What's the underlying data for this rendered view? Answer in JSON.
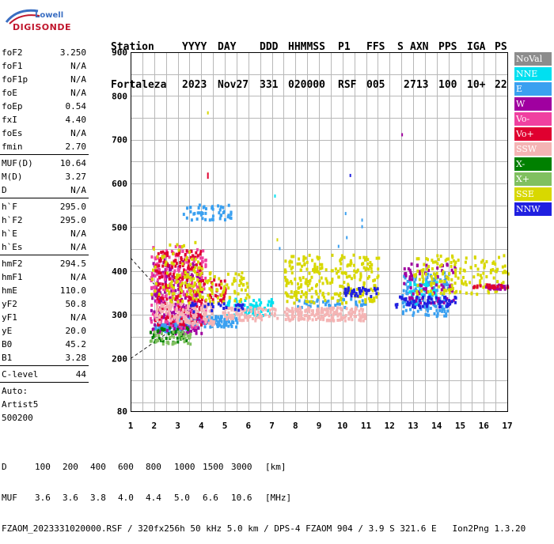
{
  "logo": {
    "line1": "Lowell",
    "line2": "DIGISONDE"
  },
  "header": {
    "line1": [
      "Station",
      "YYYY",
      "DAY",
      "DDD",
      "HHMMSS",
      "P1",
      "FFS",
      "S",
      "AXN",
      "PPS",
      "IGA",
      "PS"
    ],
    "line2": [
      "Fortaleza",
      "2023",
      "Nov27",
      "331",
      "020000",
      "RSF",
      "005",
      "2",
      "713",
      "100",
      "10+",
      "22"
    ]
  },
  "params": {
    "group1": [
      {
        "name": "foF2",
        "value": "3.250"
      },
      {
        "name": "foF1",
        "value": "N/A"
      },
      {
        "name": "foF1p",
        "value": "N/A"
      },
      {
        "name": "foE",
        "value": "N/A"
      },
      {
        "name": "foEp",
        "value": "0.54"
      },
      {
        "name": "fxI",
        "value": "4.40"
      },
      {
        "name": "foEs",
        "value": "N/A"
      },
      {
        "name": "fmin",
        "value": "2.70"
      }
    ],
    "group2": [
      {
        "name": "MUF(D)",
        "value": "10.64"
      },
      {
        "name": "M(D)",
        "value": "3.27"
      },
      {
        "name": "D",
        "value": "N/A"
      }
    ],
    "group3": [
      {
        "name": "h`F",
        "value": "295.0"
      },
      {
        "name": "h`F2",
        "value": "295.0"
      },
      {
        "name": "h`E",
        "value": "N/A"
      },
      {
        "name": "h`Es",
        "value": "N/A"
      }
    ],
    "group4": [
      {
        "name": "hmF2",
        "value": "294.5"
      },
      {
        "name": "hmF1",
        "value": "N/A"
      },
      {
        "name": "hmE",
        "value": "110.0"
      },
      {
        "name": "yF2",
        "value": "50.8"
      },
      {
        "name": "yF1",
        "value": "N/A"
      },
      {
        "name": "yE",
        "value": "20.0"
      },
      {
        "name": "B0",
        "value": "45.2"
      },
      {
        "name": "B1",
        "value": "3.28"
      }
    ],
    "group5": [
      {
        "name": "C-level",
        "value": "44"
      }
    ],
    "auto": [
      "Auto:",
      "Artist5",
      "500200"
    ]
  },
  "legend": [
    {
      "label": "NoVal",
      "color": "#8c8c8c"
    },
    {
      "label": "NNE",
      "color": "#00e0f0"
    },
    {
      "label": "E",
      "color": "#3aa0f0"
    },
    {
      "label": "W",
      "color": "#a000a0"
    },
    {
      "label": "Vo-",
      "color": "#f040a0"
    },
    {
      "label": "Vo+",
      "color": "#e00030"
    },
    {
      "label": "SSW",
      "color": "#f4b4b4"
    },
    {
      "label": "X-",
      "color": "#008000"
    },
    {
      "label": "X+",
      "color": "#80c060"
    },
    {
      "label": "SSE",
      "color": "#d8d800"
    },
    {
      "label": "NNW",
      "color": "#2020e0"
    }
  ],
  "footer": {
    "d_label": "D",
    "d_values": [
      "100",
      "200",
      "400",
      "600",
      "800",
      "1000",
      "1500",
      "3000",
      "[km]"
    ],
    "muf_label": "MUF",
    "muf_values": [
      "3.6",
      "3.6",
      "3.8",
      "4.0",
      "4.4",
      "5.0",
      "6.6",
      "10.6",
      "[MHz]"
    ],
    "file_line": "FZAOM_2023331020000.RSF / 320fx256h 50 kHz 5.0 km / DPS-4 FZAOM 904 / 3.9 S 321.6 E   Ion2Png 1.3.20"
  },
  "chart_data": {
    "type": "scatter",
    "xlim": [
      1,
      17
    ],
    "ylim": [
      80,
      900
    ],
    "x_ticks": [
      1,
      2,
      3,
      4,
      5,
      6,
      7,
      8,
      9,
      10,
      11,
      12,
      13,
      14,
      15,
      16,
      17
    ],
    "y_ticks": [
      80,
      200,
      300,
      400,
      500,
      600,
      700,
      800,
      900
    ],
    "y_grid": [
      100,
      150,
      200,
      250,
      300,
      350,
      400,
      450,
      500,
      550,
      600,
      650,
      700,
      750,
      800,
      850,
      900
    ],
    "grid": true,
    "clusters": [
      {
        "series": "E",
        "f": [
          2.0,
          3.4
        ],
        "h": [
          265,
          285
        ],
        "n": 90
      },
      {
        "series": "E",
        "f": [
          3.0,
          5.5
        ],
        "h": [
          275,
          300
        ],
        "n": 120
      },
      {
        "series": "E",
        "f": [
          3.2,
          5.3
        ],
        "h": [
          520,
          555
        ],
        "n": 50
      },
      {
        "series": "E",
        "f": [
          12.5,
          14.5
        ],
        "h": [
          300,
          400
        ],
        "n": 140
      },
      {
        "series": "E",
        "f": [
          8.0,
          11.0
        ],
        "h": [
          320,
          340
        ],
        "n": 40
      },
      {
        "series": "NNE",
        "f": [
          5.0,
          7.0
        ],
        "h": [
          300,
          340
        ],
        "n": 60
      },
      {
        "series": "NNE",
        "f": [
          12.8,
          14.0
        ],
        "h": [
          330,
          380
        ],
        "n": 40
      },
      {
        "series": "W",
        "f": [
          1.8,
          4.0
        ],
        "h": [
          260,
          430
        ],
        "n": 220
      },
      {
        "series": "W",
        "f": [
          12.5,
          14.8
        ],
        "h": [
          330,
          420
        ],
        "n": 80
      },
      {
        "series": "Vo-",
        "f": [
          1.8,
          4.2
        ],
        "h": [
          270,
          460
        ],
        "n": 200
      },
      {
        "series": "Vo+",
        "f": [
          2.0,
          4.0
        ],
        "h": [
          280,
          450
        ],
        "n": 180
      },
      {
        "series": "Vo+",
        "f": [
          4.0,
          5.0
        ],
        "h": [
          330,
          390
        ],
        "n": 30
      },
      {
        "series": "SSW",
        "f": [
          2.0,
          4.5
        ],
        "h": [
          280,
          330
        ],
        "n": 140
      },
      {
        "series": "SSW",
        "f": [
          7.5,
          11.0
        ],
        "h": [
          290,
          320
        ],
        "n": 180
      },
      {
        "series": "SSW",
        "f": [
          4.8,
          7.2
        ],
        "h": [
          290,
          320
        ],
        "n": 80
      },
      {
        "series": "X-",
        "f": [
          1.8,
          3.5
        ],
        "h": [
          240,
          275
        ],
        "n": 40
      },
      {
        "series": "X+",
        "f": [
          1.8,
          3.5
        ],
        "h": [
          235,
          265
        ],
        "n": 40
      },
      {
        "series": "SSE",
        "f": [
          2.5,
          6.0
        ],
        "h": [
          330,
          400
        ],
        "n": 120
      },
      {
        "series": "SSE",
        "f": [
          7.5,
          11.5
        ],
        "h": [
          330,
          440
        ],
        "n": 260
      },
      {
        "series": "SSE",
        "f": [
          13.0,
          17.0
        ],
        "h": [
          350,
          440
        ],
        "n": 160
      },
      {
        "series": "SSE",
        "f": [
          1.8,
          4.0
        ],
        "h": [
          350,
          470
        ],
        "n": 60
      },
      {
        "series": "NNW",
        "f": [
          10.0,
          11.5
        ],
        "h": [
          345,
          365
        ],
        "n": 40
      },
      {
        "series": "NNW",
        "f": [
          12.2,
          14.8
        ],
        "h": [
          320,
          345
        ],
        "n": 60
      },
      {
        "series": "NNW",
        "f": [
          3.5,
          5.8
        ],
        "h": [
          310,
          330
        ],
        "n": 25
      },
      {
        "series": "W",
        "f": [
          16.0,
          17.0
        ],
        "h": [
          362,
          372
        ],
        "n": 25
      },
      {
        "series": "Vo+",
        "f": [
          15.5,
          17.0
        ],
        "h": [
          364,
          372
        ],
        "n": 20
      }
    ],
    "scattered_points": [
      {
        "series": "Vo+",
        "f": 4.25,
        "h": 625
      },
      {
        "series": "Vo+",
        "f": 4.25,
        "h": 618
      },
      {
        "series": "SSE",
        "f": 4.25,
        "h": 765
      },
      {
        "series": "W",
        "f": 12.5,
        "h": 715
      },
      {
        "series": "NNW",
        "f": 10.3,
        "h": 622
      },
      {
        "series": "E",
        "f": 10.8,
        "h": 520
      },
      {
        "series": "E",
        "f": 10.8,
        "h": 505
      },
      {
        "series": "E",
        "f": 10.1,
        "h": 535
      },
      {
        "series": "E",
        "f": 10.15,
        "h": 480
      },
      {
        "series": "E",
        "f": 7.3,
        "h": 455
      },
      {
        "series": "E",
        "f": 9.8,
        "h": 460
      },
      {
        "series": "NNE",
        "f": 7.1,
        "h": 575
      },
      {
        "series": "SSE",
        "f": 7.2,
        "h": 475
      }
    ],
    "trace_lines": [
      {
        "points": [
          [
            1.0,
            430
          ],
          [
            2.0,
            370
          ]
        ],
        "style": "dashed"
      },
      {
        "points": [
          [
            1.0,
            200
          ],
          [
            2.6,
            260
          ]
        ],
        "style": "dashed"
      }
    ]
  }
}
